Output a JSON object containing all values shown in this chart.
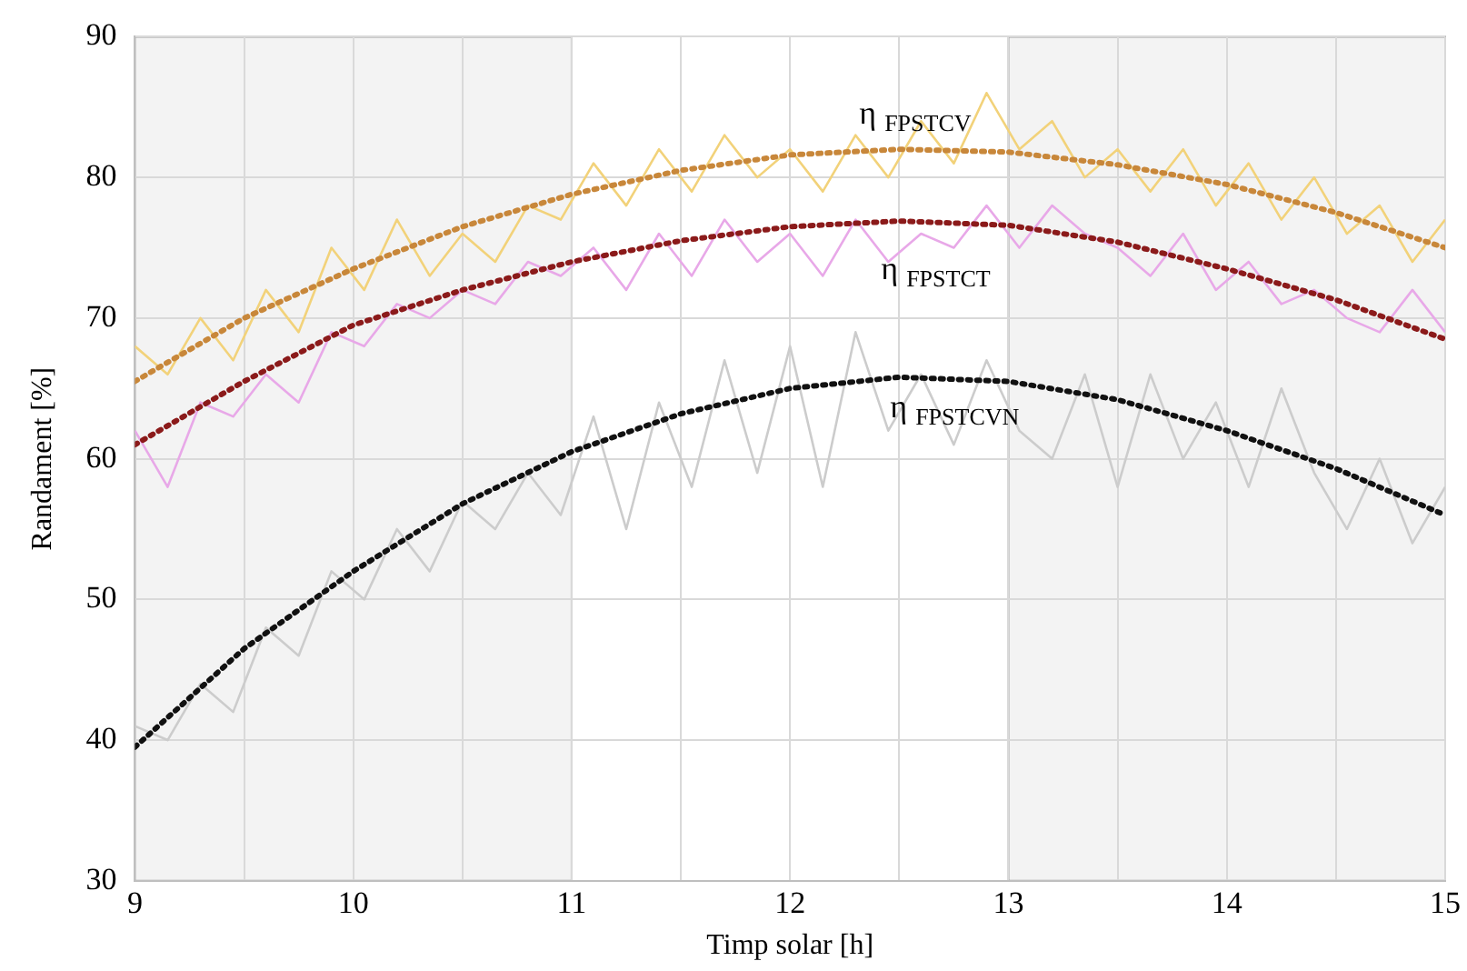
{
  "chart_data": {
    "type": "line",
    "xlabel": "Timp solar [h]",
    "ylabel": "Randament [%]",
    "x": [
      9,
      9.15,
      9.3,
      9.45,
      9.6,
      9.75,
      9.9,
      10.05,
      10.2,
      10.35,
      10.5,
      10.65,
      10.8,
      10.95,
      11.1,
      11.25,
      11.4,
      11.55,
      11.7,
      11.85,
      12,
      12.15,
      12.3,
      12.45,
      12.6,
      12.75,
      12.9,
      13.05,
      13.2,
      13.35,
      13.5,
      13.65,
      13.8,
      13.95,
      14.1,
      14.25,
      14.4,
      14.55,
      14.7,
      14.85,
      15
    ],
    "series": [
      {
        "color": "#f2d27a",
        "values": [
          68,
          66,
          70,
          67,
          72,
          69,
          75,
          72,
          77,
          73,
          76,
          74,
          78,
          77,
          81,
          78,
          82,
          79,
          83,
          80,
          82,
          79,
          83,
          80,
          84,
          81,
          86,
          82,
          84,
          80,
          82,
          79,
          82,
          78,
          81,
          77,
          80,
          76,
          78,
          74,
          77
        ]
      },
      {
        "color": "#e8a8e8",
        "values": [
          62,
          58,
          64,
          63,
          66,
          64,
          69,
          68,
          71,
          70,
          72,
          71,
          74,
          73,
          75,
          72,
          76,
          73,
          77,
          74,
          76,
          73,
          77,
          74,
          76,
          75,
          78,
          75,
          78,
          76,
          75,
          73,
          76,
          72,
          74,
          71,
          72,
          70,
          69,
          72,
          69
        ]
      },
      {
        "color": "#cccccc",
        "values": [
          41,
          40,
          44,
          42,
          48,
          46,
          52,
          50,
          55,
          52,
          57,
          55,
          59,
          56,
          63,
          55,
          64,
          58,
          67,
          59,
          68,
          58,
          69,
          62,
          66,
          61,
          67,
          62,
          60,
          66,
          58,
          66,
          60,
          64,
          58,
          65,
          59,
          55,
          60,
          54,
          58
        ]
      },
      {
        "name": "η $_{FPSTCV}$",
        "color": "#c8873a",
        "line_style": "dotted",
        "x": [
          9,
          9.5,
          10,
          10.5,
          11,
          11.5,
          12,
          12.5,
          13,
          13.5,
          14,
          14.5,
          15
        ],
        "values": [
          65.5,
          70,
          73.5,
          76.5,
          78.8,
          80.5,
          81.6,
          82,
          81.8,
          80.9,
          79.5,
          77.5,
          75
        ]
      },
      {
        "name": "η $_{FPSTCT}$",
        "color": "#8b1a1a",
        "line_style": "dotted",
        "x": [
          9,
          9.5,
          10,
          10.5,
          11,
          11.5,
          12,
          12.5,
          13,
          13.5,
          14,
          14.5,
          15
        ],
        "values": [
          61,
          65.5,
          69.5,
          72,
          74,
          75.5,
          76.5,
          76.9,
          76.6,
          75.4,
          73.5,
          71.3,
          68.5
        ]
      },
      {
        "name": "η $_{FPSTCVN}$",
        "color": "#111111",
        "line_style": "dotted",
        "x": [
          9,
          9.5,
          10,
          10.5,
          11,
          11.5,
          12,
          12.5,
          13,
          13.5,
          14,
          14.5,
          15
        ],
        "values": [
          39.5,
          46.5,
          52,
          56.8,
          60.5,
          63.2,
          65,
          65.8,
          65.5,
          64.2,
          62,
          59.3,
          56
        ]
      }
    ],
    "xlim": [
      9,
      15
    ],
    "xticks": [
      9,
      {
        "value": 9.5,
        "label": null
      },
      10,
      {
        "value": 10.5,
        "label": null
      },
      11,
      {
        "value": 11.5,
        "label": null
      },
      12,
      {
        "value": 12.5,
        "label": null
      },
      13,
      {
        "value": 13.5,
        "label": null
      },
      14,
      {
        "value": 14.5,
        "label": null
      },
      15
    ],
    "ylim": [
      30,
      90
    ],
    "yticks": [
      30,
      40,
      50,
      60,
      70,
      80,
      90
    ],
    "grid": true,
    "legend": false,
    "marker": "none",
    "bands": [
      {
        "axis": "x",
        "from": 9,
        "to": 11,
        "color": "#f3f3f3"
      },
      {
        "axis": "x",
        "from": 13,
        "to": 15,
        "color": "#f3f3f3"
      }
    ]
  }
}
